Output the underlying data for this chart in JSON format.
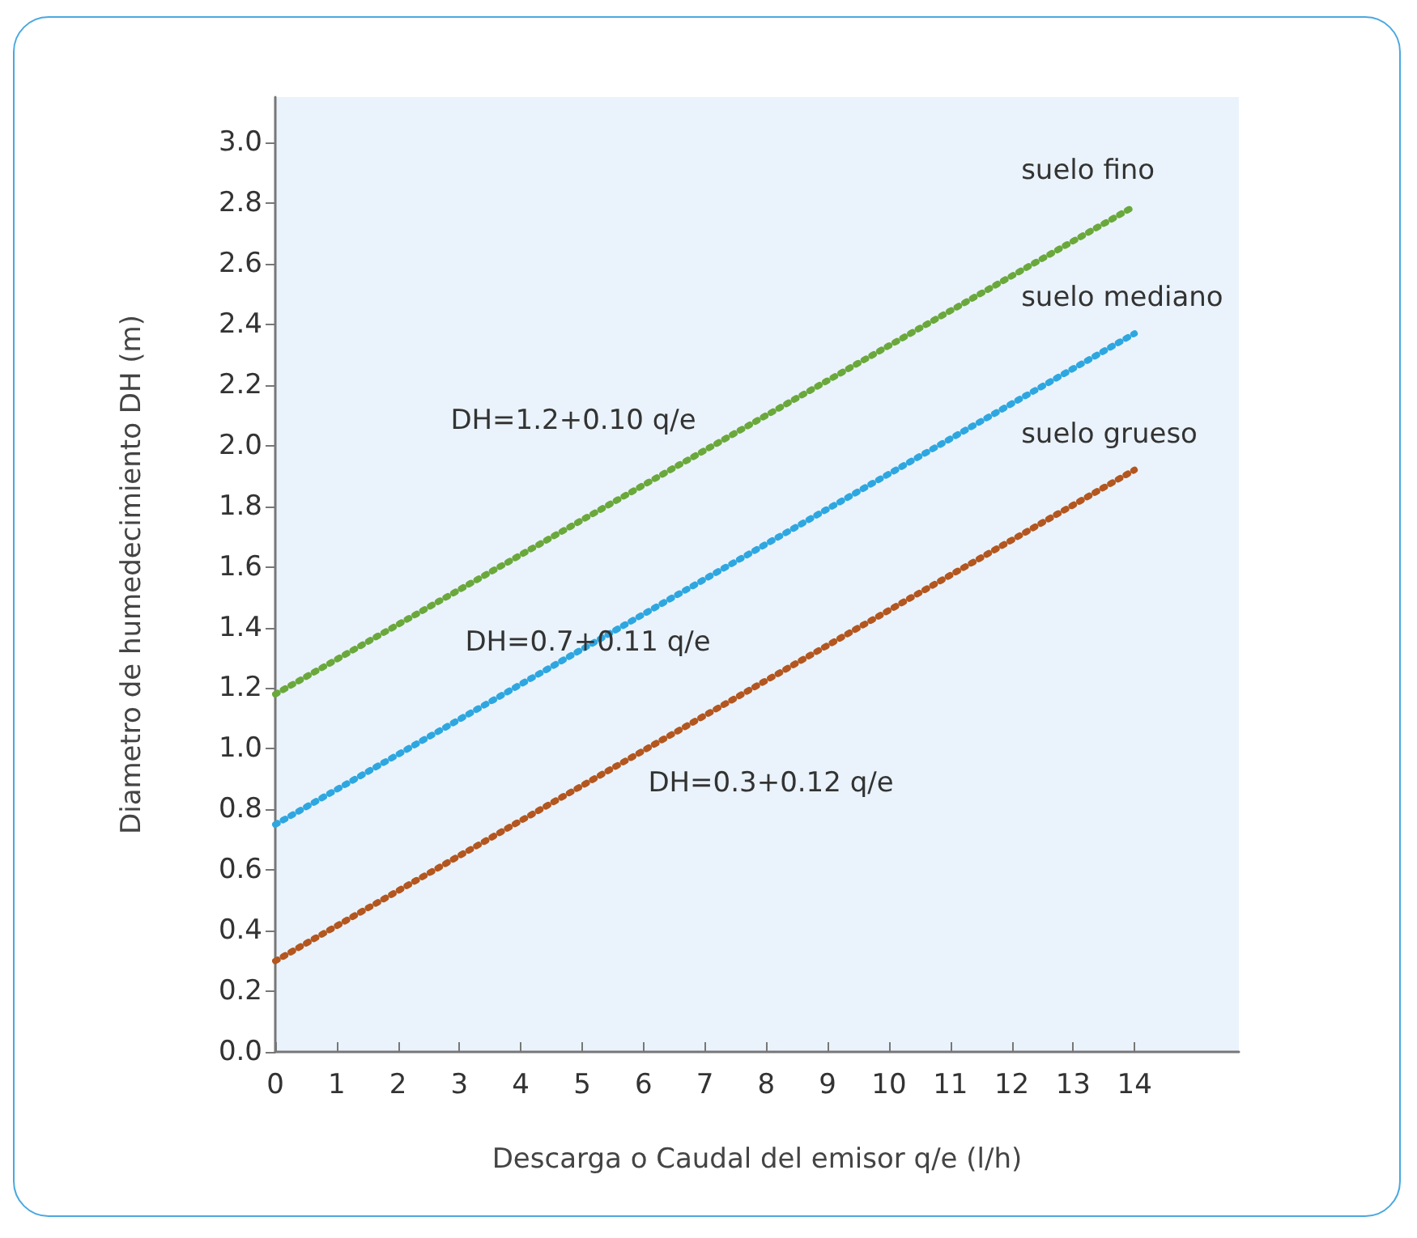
{
  "chart_data": {
    "type": "line",
    "xlabel": "Descarga o Caudal del emisor q/e (l/h)",
    "ylabel": "Diametro de humedecimiento DH (m)",
    "x": [
      0,
      14
    ],
    "series": [
      {
        "name": "suelo fino",
        "color": "#6aa83c",
        "values": [
          1.18,
          2.79
        ]
      },
      {
        "name": "suelo mediano",
        "color": "#2ea7e0",
        "values": [
          0.75,
          2.37
        ]
      },
      {
        "name": "suelo grueso",
        "color": "#b3561f",
        "values": [
          0.3,
          1.92
        ]
      }
    ],
    "xlim": [
      0,
      15.7
    ],
    "xticks": [
      0,
      1,
      2,
      3,
      4,
      5,
      6,
      7,
      8,
      9,
      10,
      11,
      12,
      13,
      14
    ],
    "ylim": [
      0,
      3.15
    ],
    "yticks": [
      {
        "value": 0,
        "label": "0.0"
      },
      {
        "value": 0.2,
        "label": "0.2"
      },
      {
        "value": 0.4,
        "label": "0.4"
      },
      {
        "value": 0.6,
        "label": "0.6"
      },
      {
        "value": 0.8,
        "label": "0.8"
      },
      {
        "value": 1,
        "label": "1.0"
      },
      {
        "value": 1.2,
        "label": "1.2"
      },
      {
        "value": 1.4,
        "label": "1.4"
      },
      {
        "value": 1.6,
        "label": "1.6"
      },
      {
        "value": 1.8,
        "label": "1.8"
      },
      {
        "value": 2,
        "label": "2.0"
      },
      {
        "value": 2.2,
        "label": "2.2"
      },
      {
        "value": 2.4,
        "label": "2.4"
      },
      {
        "value": 2.6,
        "label": "2.6"
      },
      {
        "value": 2.8,
        "label": "2.8"
      },
      {
        "value": 3,
        "label": "3.0"
      }
    ],
    "annotations": [
      "DH=1.2+0.10 q/e",
      "DH=0.7+0.11 q/e",
      "DH=0.3+0.12 q/e"
    ],
    "grid": false,
    "legend": false,
    "marker": "none",
    "line_style": "dotted"
  }
}
